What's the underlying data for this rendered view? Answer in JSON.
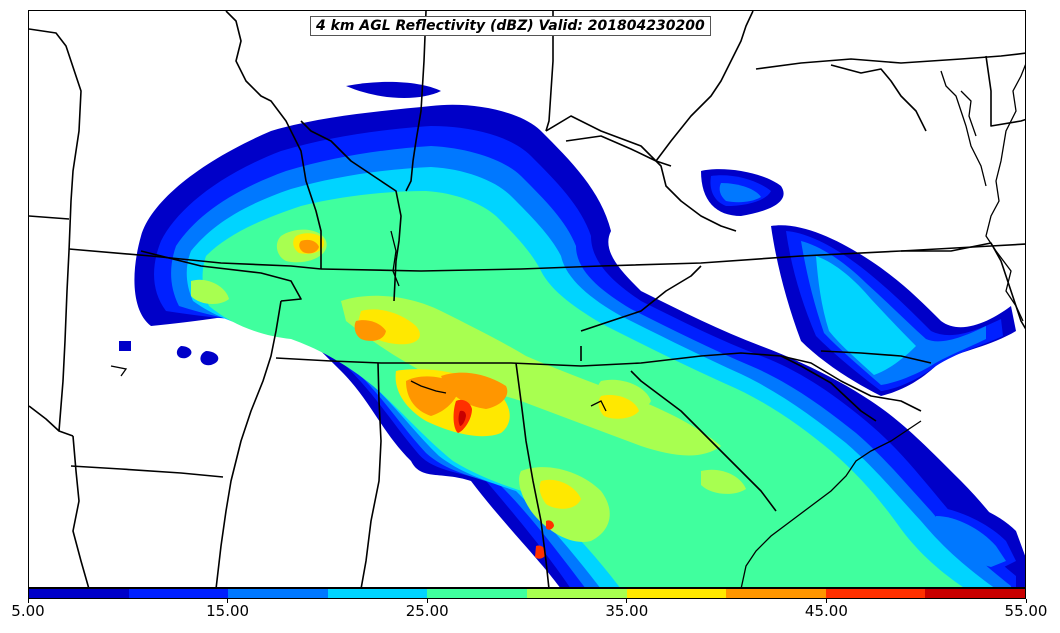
{
  "title": "4 km AGL Reflectivity (dBZ) Valid: 201804230200",
  "colorbar": {
    "min": 5.0,
    "max": 55.0,
    "step": 5.0,
    "colors": [
      "#0000c8",
      "#0020ff",
      "#0078ff",
      "#00d4ff",
      "#40ff9e",
      "#a8ff50",
      "#ffe800",
      "#ff9600",
      "#ff3000",
      "#c80000"
    ],
    "tick_labels": [
      "5.00",
      "15.00",
      "25.00",
      "35.00",
      "45.00",
      "55.00"
    ]
  },
  "legend_icon": "colorbar-gradient"
}
